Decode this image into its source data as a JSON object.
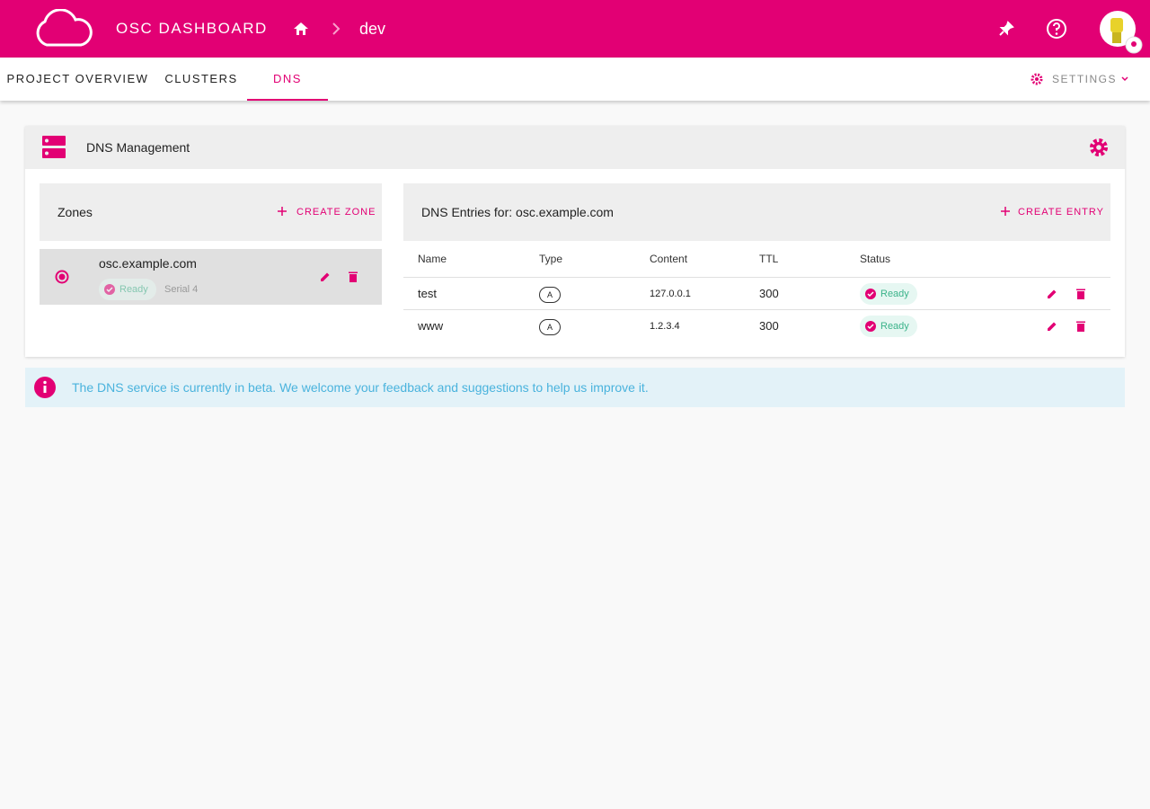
{
  "header": {
    "title": "OSC DASHBOARD",
    "breadcrumb": "dev"
  },
  "tabs": [
    "PROJECT OVERVIEW",
    "CLUSTERS",
    "DNS"
  ],
  "settings": "SETTINGS",
  "panel": {
    "title": "DNS Management"
  },
  "zones": {
    "title": "Zones",
    "create": "CREATE ZONE",
    "items": [
      {
        "name": "osc.example.com",
        "status": "Ready",
        "serial": "Serial 4"
      }
    ]
  },
  "entries": {
    "title": "DNS Entries for: osc.example.com",
    "create": "CREATE ENTRY",
    "columns": [
      "Name",
      "Type",
      "Content",
      "TTL",
      "Status"
    ],
    "rows": [
      [
        "test",
        "A",
        "127.0.0.1",
        300,
        "Ready"
      ],
      [
        "www",
        "A",
        "1.2.3.4",
        300,
        "Ready"
      ]
    ]
  },
  "notice": "The DNS service is currently in beta. We welcome your feedback and suggestions to help us improve it."
}
